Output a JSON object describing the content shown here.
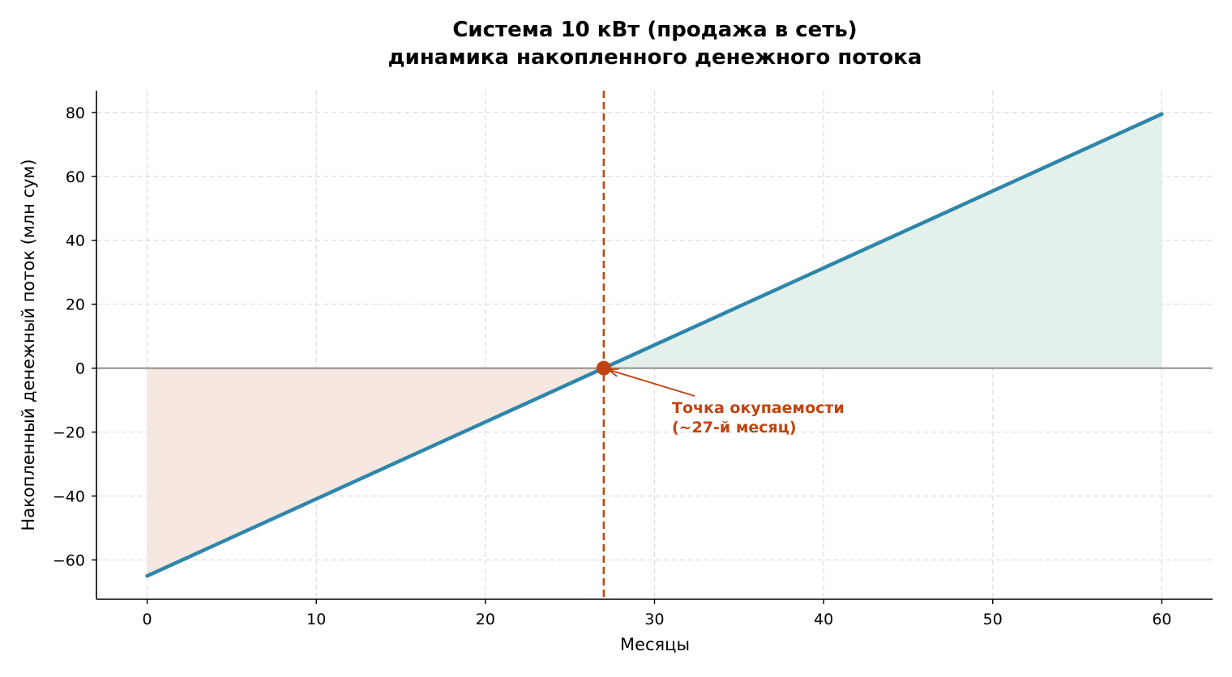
{
  "chart_data": {
    "type": "line",
    "title": "Система 10 кВт (продажа в сеть)",
    "subtitle": "динамика накопленного денежного потока",
    "xlabel": "Месяцы",
    "ylabel": "Накопленный денежный поток (млн сум)",
    "xlim": [
      -3,
      63
    ],
    "ylim": [
      -72.3,
      86.8
    ],
    "xticks": [
      0,
      10,
      20,
      30,
      40,
      50,
      60
    ],
    "yticks": [
      -60,
      -40,
      -20,
      0,
      20,
      40,
      60,
      80
    ],
    "grid": true,
    "series": [
      {
        "x": [
          0,
          60
        ],
        "y": [
          -65,
          79.5
        ],
        "color": "#2e86ab"
      }
    ],
    "fill_negative_color": "#f6e8e0",
    "fill_positive_color": "#e4f0ea",
    "zero_line_color": "#8c8c8c",
    "breakeven": {
      "x": 27,
      "y": 0,
      "color": "#c0440f",
      "label_line1": "Точка окупаемости",
      "label_line2": "(~27-й месяц)"
    }
  }
}
